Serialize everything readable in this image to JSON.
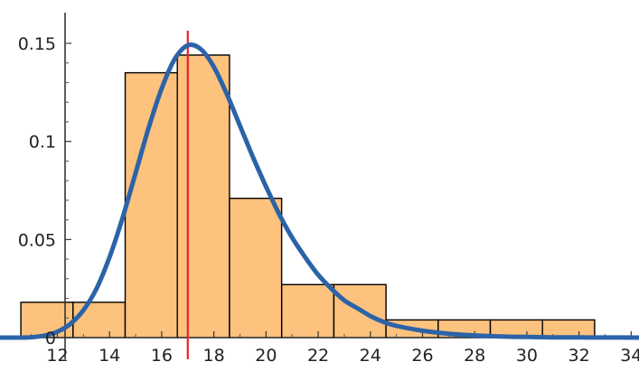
{
  "chart_data": {
    "type": "bar",
    "title": "",
    "xlabel": "",
    "ylabel": "",
    "xlim": [
      9.8,
      34.3
    ],
    "ylim": [
      -0.0055,
      0.1655
    ],
    "x_ticks": [
      {
        "value": 12,
        "label": "12"
      },
      {
        "value": 14,
        "label": "14"
      },
      {
        "value": 16,
        "label": "16"
      },
      {
        "value": 18,
        "label": "18"
      },
      {
        "value": 20,
        "label": "20"
      },
      {
        "value": 22,
        "label": "22"
      },
      {
        "value": 24,
        "label": "24"
      },
      {
        "value": 26,
        "label": "26"
      },
      {
        "value": 28,
        "label": "28"
      },
      {
        "value": 30,
        "label": "30"
      },
      {
        "value": 32,
        "label": "32"
      },
      {
        "value": 34,
        "label": "34"
      }
    ],
    "y_ticks": [
      {
        "value": 0,
        "label": "0"
      },
      {
        "value": 0.05,
        "label": "0.05"
      },
      {
        "value": 0.1,
        "label": "0.1"
      },
      {
        "value": 0.15,
        "label": "0.15"
      }
    ],
    "histogram": {
      "bin_edges": [
        10.6,
        12.6,
        14.6,
        16.6,
        18.6,
        20.6,
        22.6,
        24.6,
        26.6,
        28.6,
        30.6,
        32.6,
        34.6
      ],
      "density": [
        0.018,
        0.018,
        0.135,
        0.144,
        0.071,
        0.027,
        0.027,
        0.009,
        0.009,
        0.009,
        0.009,
        0.0
      ],
      "fill": "#fdc27d",
      "edge": "#000000"
    },
    "density_curve": {
      "x": [
        9.8,
        10.5,
        11.0,
        11.5,
        12.0,
        12.5,
        13.0,
        13.5,
        14.0,
        14.5,
        15.0,
        15.5,
        16.0,
        16.5,
        17.0,
        17.5,
        18.0,
        18.5,
        19.0,
        19.5,
        20.0,
        20.5,
        21.0,
        21.5,
        22.0,
        22.5,
        23.0,
        23.5,
        24.0,
        24.5,
        25.0,
        26.0,
        27.0,
        28.0,
        29.0,
        30.0,
        31.0,
        32.0,
        33.0,
        34.3
      ],
      "y": [
        0.0,
        0.0,
        0.0002,
        0.001,
        0.003,
        0.007,
        0.014,
        0.025,
        0.041,
        0.061,
        0.084,
        0.107,
        0.127,
        0.142,
        0.149,
        0.147,
        0.138,
        0.124,
        0.108,
        0.092,
        0.077,
        0.063,
        0.051,
        0.041,
        0.032,
        0.025,
        0.019,
        0.015,
        0.011,
        0.008,
        0.006,
        0.0035,
        0.002,
        0.0011,
        0.0006,
        0.0003,
        0.00015,
        8e-05,
        4e-05,
        0.0
      ],
      "color": "#2c63a8"
    },
    "reference_line": {
      "x": 17.0,
      "color": "#e8242c"
    }
  }
}
